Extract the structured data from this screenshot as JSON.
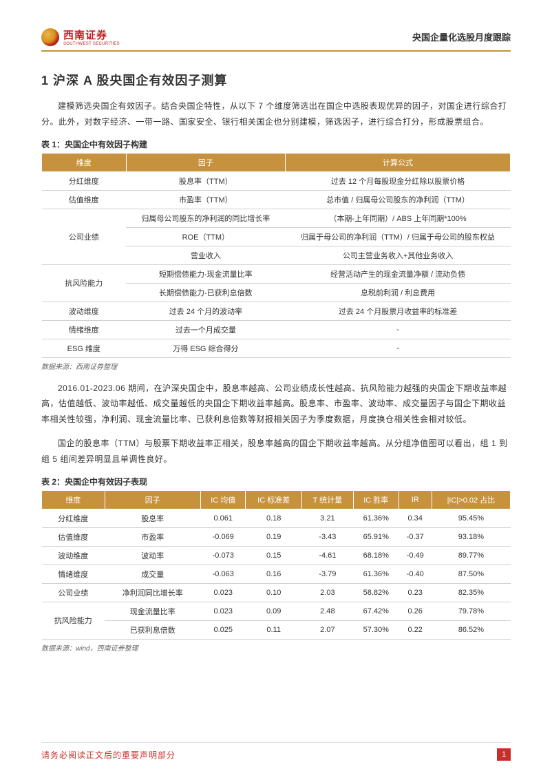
{
  "header": {
    "company_cn": "西南证券",
    "company_en": "SOUTHWEST SECURITIES",
    "doc_title": "央国企量化选股月度跟踪"
  },
  "section": {
    "number": "1",
    "title": "沪深 A 股央国企有效因子测算"
  },
  "para1": "建模筛选央国企有效因子。结合央国企特性，从以下 7 个维度筛选出在国企中选股表现优异的因子，对国企进行综合打分。此外，对数字经济、一带一路、国家安全、银行相关国企也分别建模，筛选因子，进行综合打分，形成股票组合。",
  "table1": {
    "title": "表 1：央国企中有效因子构建",
    "headers": [
      "维度",
      "因子",
      "计算公式"
    ],
    "rows": [
      {
        "dim": "分红维度",
        "rowspan": 1,
        "factor": "股息率（TTM）",
        "formula": "过去 12 个月每股现金分红除以股票价格"
      },
      {
        "dim": "估值维度",
        "rowspan": 1,
        "factor": "市盈率（TTM）",
        "formula": "总市值 / 归属母公司股东的净利润（TTM）"
      },
      {
        "dim": "公司业绩",
        "rowspan": 3,
        "factor": "归属母公司股东的净利润的同比增长率",
        "formula": "（本期-上年同期）/ ABS 上年同期*100%"
      },
      {
        "dim": "",
        "rowspan": 0,
        "factor": "ROE（TTM）",
        "formula": "归属于母公司的净利润（TTM）/ 归属于母公司的股东权益"
      },
      {
        "dim": "",
        "rowspan": 0,
        "factor": "营业收入",
        "formula": "公司主营业务收入+其他业务收入"
      },
      {
        "dim": "抗风险能力",
        "rowspan": 2,
        "factor": "短期偿债能力-现金流量比率",
        "formula": "经营活动产生的现金流量净额 / 流动负债"
      },
      {
        "dim": "",
        "rowspan": 0,
        "factor": "长期偿债能力-已获利息倍数",
        "formula": "息税前利润 / 利息费用"
      },
      {
        "dim": "波动维度",
        "rowspan": 1,
        "factor": "过去 24 个月的波动率",
        "formula": "过去 24 个月股票月收益率的标准差"
      },
      {
        "dim": "情绪维度",
        "rowspan": 1,
        "factor": "过去一个月成交量",
        "formula": "-"
      },
      {
        "dim": "ESG 维度",
        "rowspan": 1,
        "factor": "万得 ESG 综合得分",
        "formula": "-"
      }
    ],
    "source": "数据来源：西南证券整理"
  },
  "para2": "2016.01-2023.06 期间，在沪深央国企中，股息率越高、公司业绩成长性越高、抗风险能力越强的央国企下期收益率越高，估值越低、波动率越低、成交量越低的央国企下期收益率越高。股息率、市盈率、波动率、成交量因子与国企下期收益率相关性较强，净利润、现金流量比率、已获利息倍数等财报相关因子为季度数据，月度换仓相关性会相对较低。",
  "para3": "国企的股息率（TTM）与股票下期收益率正相关，股息率越高的国企下期收益率越高。从分组净值图可以看出，组 1 到组 5 组间差异明显且单调性良好。",
  "table2": {
    "title": "表 2：央国企中有效因子表现",
    "headers": [
      "维度",
      "因子",
      "IC 均值",
      "IC 标准差",
      "T 统计量",
      "IC 胜率",
      "IR",
      "|IC|>0.02 占比"
    ],
    "rows": [
      {
        "dim": "分红维度",
        "rowspan": 1,
        "cells": [
          "股息率",
          "0.061",
          "0.18",
          "3.21",
          "61.36%",
          "0.34",
          "95.45%"
        ]
      },
      {
        "dim": "估值维度",
        "rowspan": 1,
        "cells": [
          "市盈率",
          "-0.069",
          "0.19",
          "-3.43",
          "65.91%",
          "-0.37",
          "93.18%"
        ]
      },
      {
        "dim": "波动维度",
        "rowspan": 1,
        "cells": [
          "波动率",
          "-0.073",
          "0.15",
          "-4.61",
          "68.18%",
          "-0.49",
          "89.77%"
        ]
      },
      {
        "dim": "情绪维度",
        "rowspan": 1,
        "cells": [
          "成交量",
          "-0.063",
          "0.16",
          "-3.79",
          "61.36%",
          "-0.40",
          "87.50%"
        ]
      },
      {
        "dim": "公司业绩",
        "rowspan": 1,
        "cells": [
          "净利润同比增长率",
          "0.023",
          "0.10",
          "2.03",
          "58.82%",
          "0.23",
          "82.35%"
        ]
      },
      {
        "dim": "抗风险能力",
        "rowspan": 2,
        "cells": [
          "现金流量比率",
          "0.023",
          "0.09",
          "2.48",
          "67.42%",
          "0.26",
          "79.78%"
        ]
      },
      {
        "dim": "",
        "rowspan": 0,
        "cells": [
          "已获利息倍数",
          "0.025",
          "0.11",
          "2.07",
          "57.30%",
          "0.22",
          "86.52%"
        ]
      }
    ],
    "source": "数据来源：wind，西南证券整理"
  },
  "footer": {
    "disclaimer": "请务必阅读正文后的重要声明部分",
    "page": "1"
  },
  "colors": {
    "accent": "#c7923e",
    "red": "#c7302a",
    "border": "#d0d0d0",
    "text": "#333333",
    "muted": "#666666",
    "white": "#ffffff"
  }
}
